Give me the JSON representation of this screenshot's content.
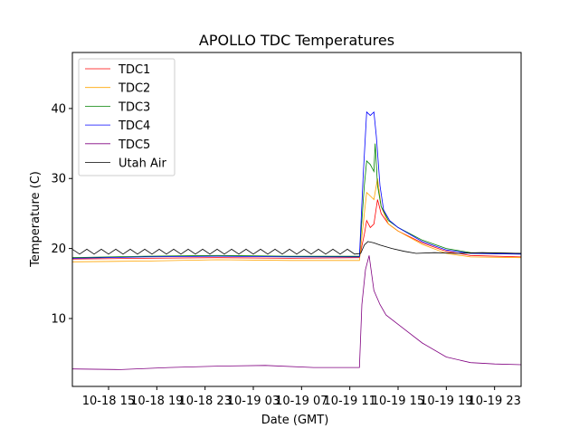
{
  "chart_data": {
    "type": "line",
    "title": "APOLLO TDC Temperatures",
    "xlabel": "Date (GMT)",
    "ylabel": "Temperature (C)",
    "x_units": "hours since 10-18 12:00 GMT",
    "xlim": [
      0,
      37.2
    ],
    "ylim": [
      0.3,
      48
    ],
    "xticks": [
      {
        "value": 3,
        "label": "10-18 15"
      },
      {
        "value": 7,
        "label": "10-18 19"
      },
      {
        "value": 11,
        "label": "10-18 23"
      },
      {
        "value": 15,
        "label": "10-19 03"
      },
      {
        "value": 19,
        "label": "10-19 07"
      },
      {
        "value": 23,
        "label": "10-19 11"
      },
      {
        "value": 27,
        "label": "10-19 15"
      },
      {
        "value": 31,
        "label": "10-19 19"
      },
      {
        "value": 35,
        "label": "10-19 23"
      }
    ],
    "yticks": [
      10,
      20,
      30,
      40
    ],
    "grid": false,
    "legend_position": "top-left",
    "series": [
      {
        "name": "TDC1",
        "color": "#ff0000",
        "x": [
          0,
          6,
          12,
          18,
          23.8,
          24.2,
          24.4,
          24.7,
          25.0,
          25.3,
          25.6,
          26.2,
          27,
          29,
          31,
          33,
          37.2
        ],
        "y": [
          18.5,
          18.6,
          18.7,
          18.6,
          18.7,
          22,
          24,
          23,
          23.5,
          27,
          25,
          23.5,
          22.5,
          20.8,
          19.6,
          19.0,
          18.8
        ]
      },
      {
        "name": "TDC2",
        "color": "#ffa500",
        "x": [
          0,
          6,
          12,
          18,
          23.8,
          24.2,
          24.4,
          24.7,
          25.0,
          25.3,
          25.6,
          26.2,
          27,
          29,
          31,
          33,
          37.2
        ],
        "y": [
          18.1,
          18.2,
          18.4,
          18.3,
          18.3,
          25,
          28,
          27.5,
          27,
          30,
          26,
          23.5,
          22.5,
          20.6,
          19.3,
          18.8,
          18.7
        ]
      },
      {
        "name": "TDC3",
        "color": "#008000",
        "x": [
          0,
          6,
          12,
          18,
          23.8,
          24.2,
          24.4,
          24.7,
          25.0,
          25.1,
          25.3,
          25.6,
          26.2,
          27,
          29,
          31,
          33,
          37.2
        ],
        "y": [
          18.7,
          18.9,
          19.0,
          18.9,
          18.9,
          29,
          32.5,
          32,
          31,
          35,
          29,
          26,
          24,
          23,
          21.2,
          20,
          19.4,
          19.3
        ]
      },
      {
        "name": "TDC4",
        "color": "#0000ff",
        "x": [
          0,
          6,
          12,
          18,
          23.8,
          24.1,
          24.4,
          24.7,
          25.0,
          25.2,
          25.5,
          25.8,
          26.3,
          27,
          29,
          31,
          33,
          37.2
        ],
        "y": [
          18.6,
          18.8,
          18.9,
          18.8,
          18.8,
          30,
          39.5,
          39,
          39.5,
          36,
          29,
          25.5,
          24,
          23,
          21,
          19.8,
          19.3,
          19.2
        ]
      },
      {
        "name": "TDC5",
        "color": "#800080",
        "x": [
          0,
          4,
          8,
          12,
          16,
          20,
          23.8,
          24.0,
          24.3,
          24.6,
          25.0,
          25.5,
          26,
          27.5,
          29,
          31,
          33,
          35,
          37.2
        ],
        "y": [
          2.8,
          2.7,
          3.0,
          3.2,
          3.3,
          3.0,
          3.0,
          12,
          17,
          19,
          14,
          12,
          10.5,
          8.5,
          6.5,
          4.5,
          3.7,
          3.5,
          3.4
        ]
      },
      {
        "name": "Utah Air",
        "color": "#000000",
        "x": [
          0,
          0.6,
          1.2,
          1.8,
          2.4,
          3,
          3.6,
          4.2,
          4.8,
          5.4,
          6,
          6.6,
          7.2,
          7.8,
          8.4,
          9,
          9.6,
          10.2,
          10.8,
          11.4,
          12,
          12.6,
          13.2,
          13.8,
          14.4,
          15,
          15.6,
          16.2,
          16.8,
          17.4,
          18,
          18.6,
          19.2,
          19.8,
          20.4,
          21,
          21.6,
          22.2,
          22.8,
          23.4,
          23.9,
          24.2,
          24.5,
          25,
          25.5,
          26.5,
          27.5,
          28.5,
          30,
          32,
          34,
          37.2
        ],
        "y": [
          19.9,
          19.2,
          19.9,
          19.2,
          19.9,
          19.2,
          19.9,
          19.2,
          19.9,
          19.2,
          19.9,
          19.2,
          19.9,
          19.2,
          19.9,
          19.2,
          19.9,
          19.2,
          19.9,
          19.2,
          19.9,
          19.2,
          19.9,
          19.2,
          19.9,
          19.2,
          19.9,
          19.2,
          19.9,
          19.2,
          19.9,
          19.2,
          19.9,
          19.2,
          19.9,
          19.2,
          19.9,
          19.2,
          19.9,
          19.2,
          19.3,
          20.5,
          21,
          20.8,
          20.5,
          20,
          19.6,
          19.3,
          19.4,
          19.3,
          19.4,
          19.3
        ]
      }
    ]
  }
}
